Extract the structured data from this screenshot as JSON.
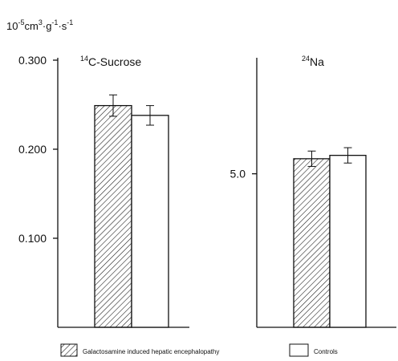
{
  "chart_data": [
    {
      "type": "bar",
      "title_isotope_mass": "14",
      "title_text": "C-Sucrose",
      "unit": {
        "base": "10",
        "base_exp": "-5",
        "cm": "cm",
        "cm_exp": "3",
        "g": "g",
        "g_exp": "-1",
        "s": "s",
        "s_exp": "-1"
      },
      "yticks": [
        "0.100",
        "0.200",
        "0.300"
      ],
      "ytick_values": [
        0.1,
        0.2,
        0.3
      ],
      "ylim": [
        0,
        0.3
      ],
      "series": [
        {
          "name": "Galactosamine induced hepatic encephalopathy",
          "values": [
            0.249
          ],
          "error": [
            0.012
          ],
          "fill": "hatched"
        },
        {
          "name": "Controls",
          "values": [
            0.238
          ],
          "error": [
            0.011
          ],
          "fill": "white"
        }
      ]
    },
    {
      "type": "bar",
      "title_isotope_mass": "24",
      "title_text": "Na",
      "yticks": [
        "5.0"
      ],
      "ytick_values": [
        5.0
      ],
      "ylim": [
        0,
        8.7
      ],
      "series": [
        {
          "name": "Galactosamine induced hepatic encephalopathy",
          "values": [
            5.49
          ],
          "error": [
            0.25
          ],
          "fill": "hatched"
        },
        {
          "name": "Controls",
          "values": [
            5.6
          ],
          "error": [
            0.25
          ],
          "fill": "white"
        }
      ]
    }
  ],
  "legend": [
    {
      "label": "Galactosamine induced hepatic encephalopathy",
      "fill": "hatched"
    },
    {
      "label": "Controls",
      "fill": "white"
    }
  ]
}
